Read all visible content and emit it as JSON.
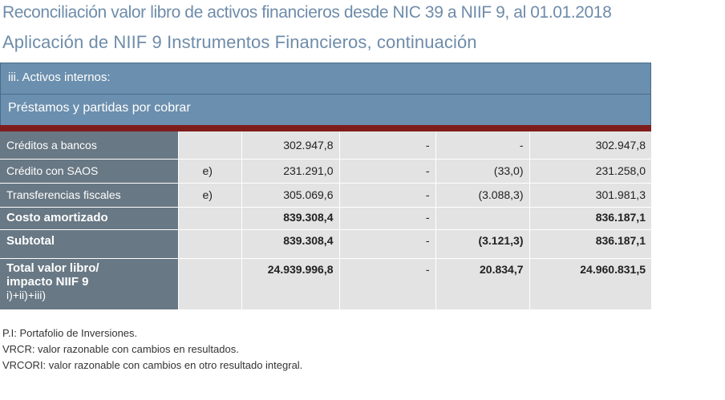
{
  "title": "Reconciliación valor libro de activos financieros desde NIC 39 a NIIF 9, al 01.01.2018",
  "subtitle": "Aplicación de NIIF 9 Instrumentos Financieros, continuación",
  "section_header": "iii. Activos internos:",
  "category_header": "Préstamos y partidas por cobrar",
  "rows": [
    {
      "label": "Créditos a bancos",
      "note": "",
      "col1": "302.947,8",
      "col2": "-",
      "col3": "-",
      "col4": "302.947,8"
    },
    {
      "label": "Crédito con SAOS",
      "note": "e)",
      "col1": "231.291,0",
      "col2": "-",
      "col3": "(33,0)",
      "col4": "231.258,0"
    },
    {
      "label": "Transferencias fiscales",
      "note": "e)",
      "col1": "305.069,6",
      "col2": "-",
      "col3": "(3.088,3)",
      "col4": "301.981,3"
    },
    {
      "label": "Costo amortizado",
      "note": "",
      "col1": "839.308,4",
      "col2": "-",
      "col3": "",
      "col4": "836.187,1"
    },
    {
      "label": "Subtotal",
      "note": "",
      "col1": "839.308,4",
      "col2": "-",
      "col3": "(3.121,3)",
      "col4": "836.187,1"
    },
    {
      "label_line1": "Total valor libro/",
      "label_line2": "impacto NIIF 9",
      "label_line3": "i)+ii)+iii)",
      "note": "",
      "col1": "24.939.996,8",
      "col2": "-",
      "col3": "20.834,7",
      "col4": "24.960.831,5"
    }
  ],
  "notes": [
    "P.I: Portafolio de Inversiones.",
    "VRCR: valor razonable con cambios en resultados.",
    "VRCORI: valor razonable con cambios en otro resultado integral."
  ],
  "colors": {
    "title": "#6e8caa",
    "band": "#6b8fae",
    "red_bar": "#7f1d1d",
    "label_col": "#687884",
    "cell_bg": "#e3e3e3"
  }
}
